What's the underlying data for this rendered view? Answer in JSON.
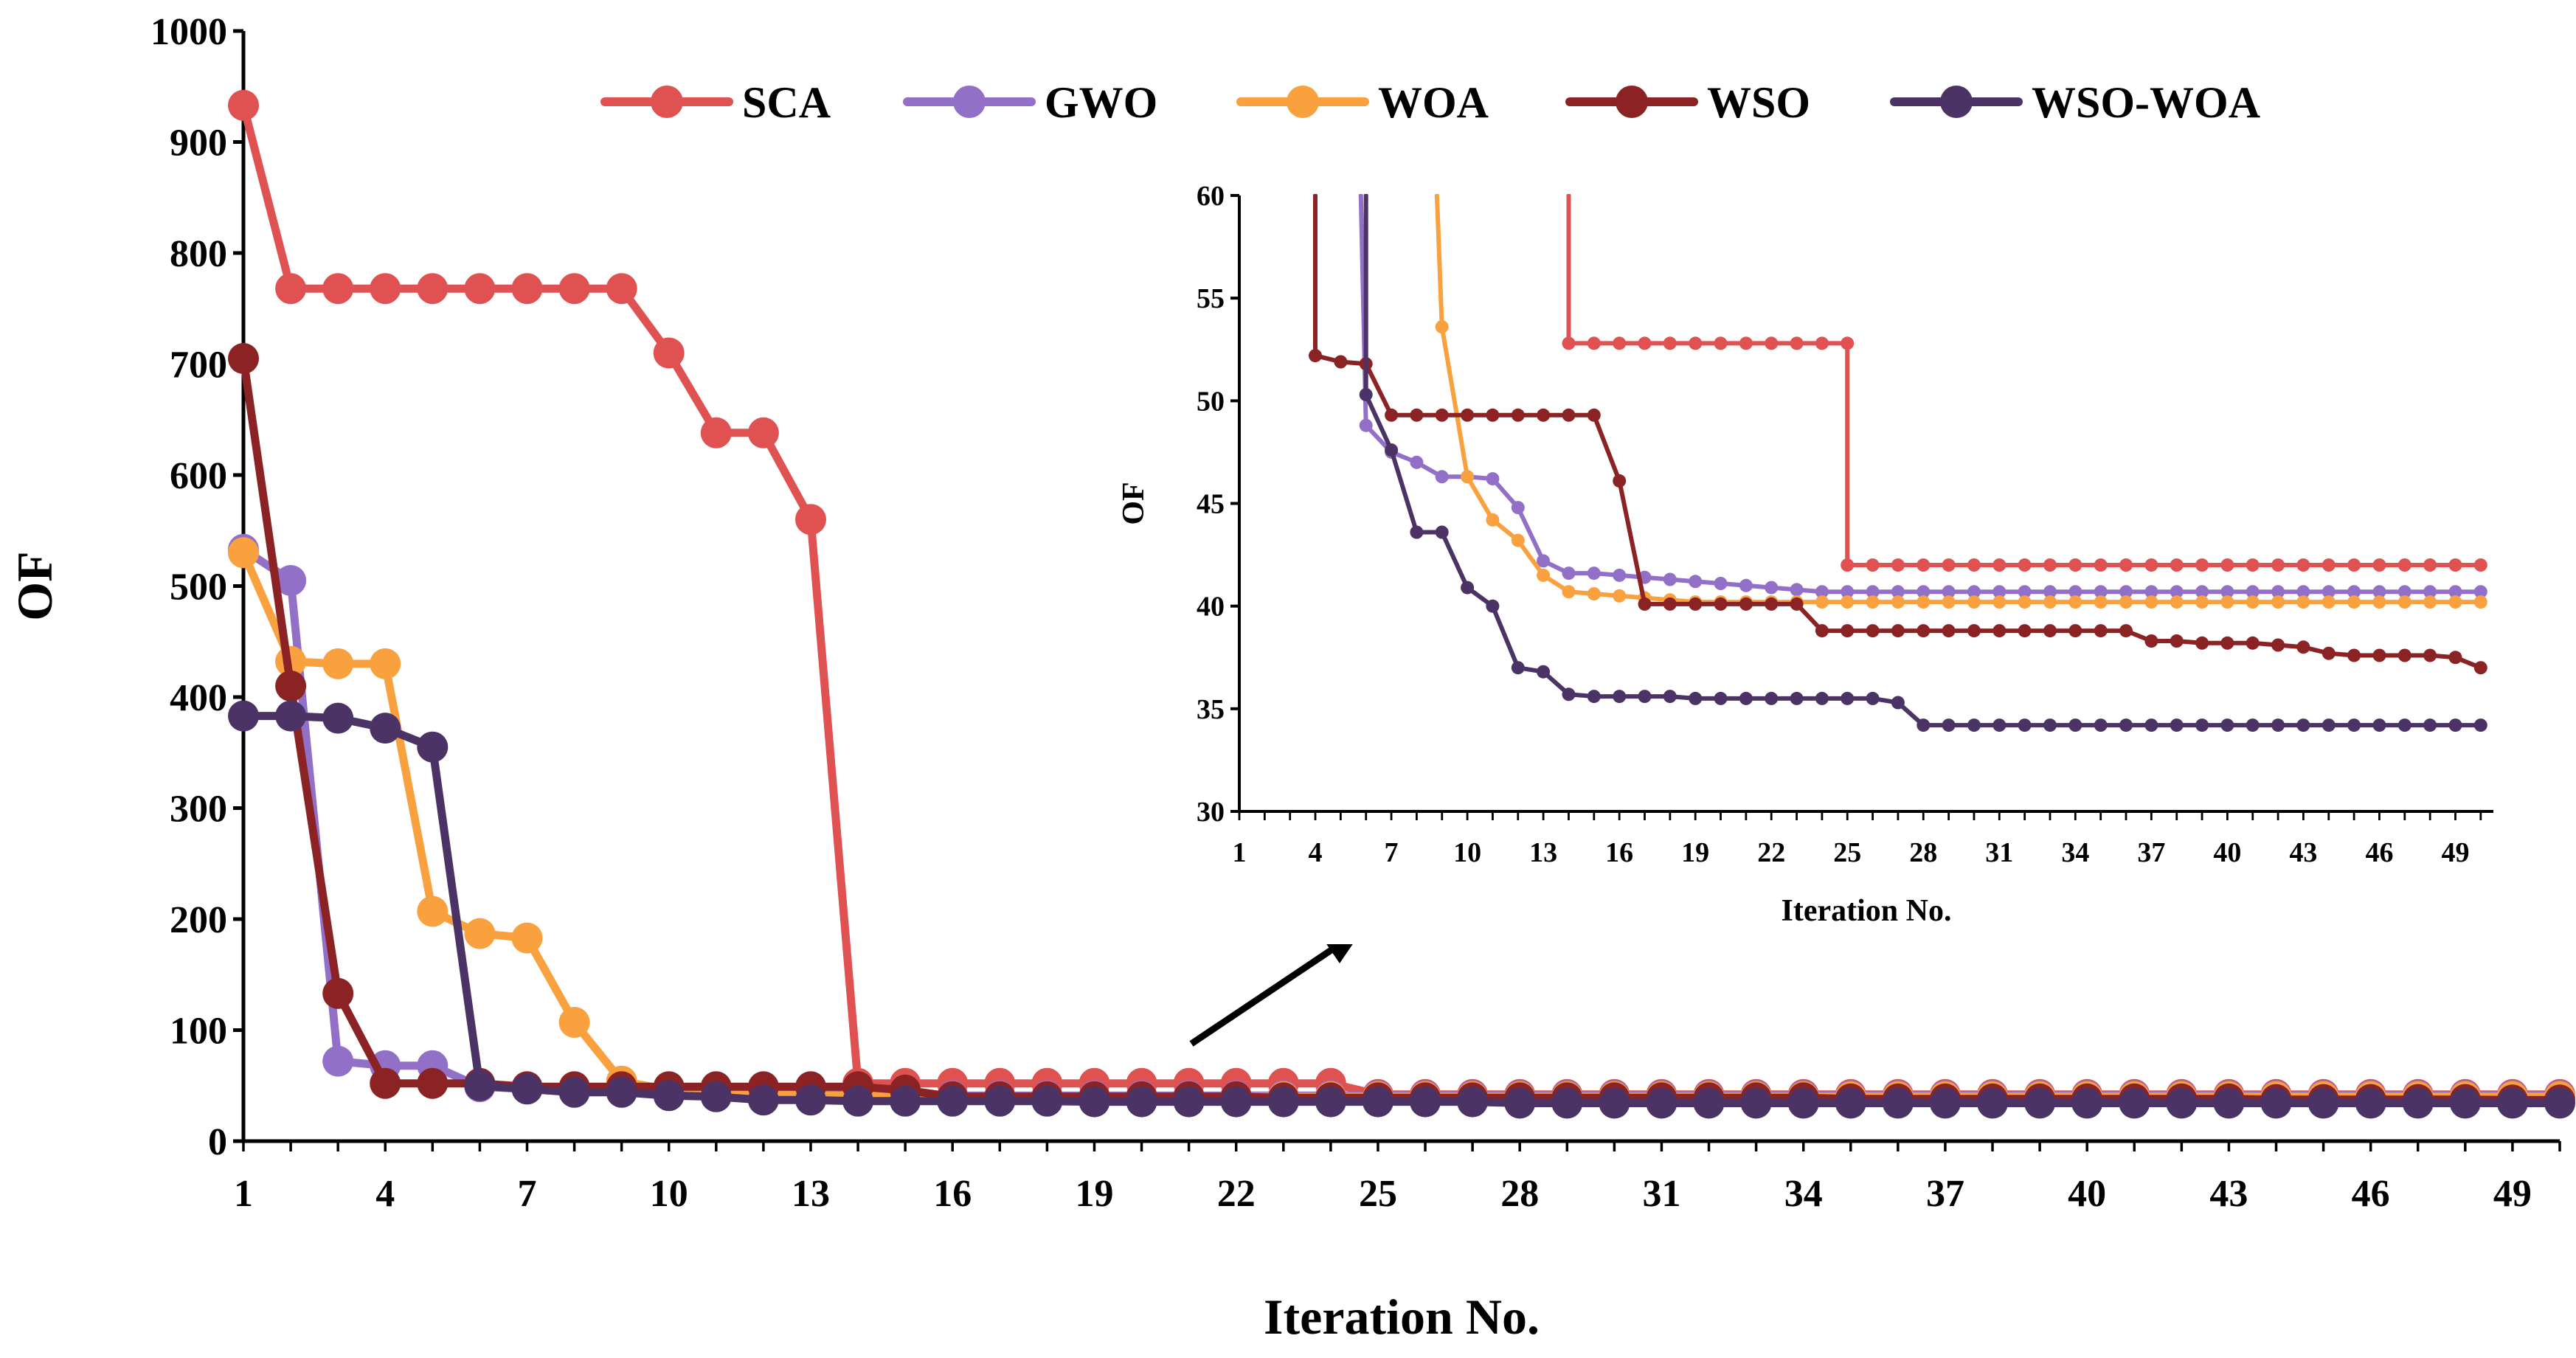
{
  "chart_data": [
    {
      "type": "line",
      "panel": "main",
      "title": "",
      "xlabel": "Iteration No.",
      "ylabel": "OF",
      "xlim": [
        1,
        50
      ],
      "ylim": [
        0,
        1000
      ],
      "xticks": [
        1,
        4,
        7,
        10,
        13,
        16,
        19,
        22,
        25,
        28,
        31,
        34,
        37,
        40,
        43,
        46,
        49
      ],
      "yticks": [
        0,
        100,
        200,
        300,
        400,
        500,
        600,
        700,
        800,
        900,
        1000
      ],
      "legend": "top",
      "series": [
        {
          "name": "SCA",
          "color": "#E05252",
          "x": [
            1,
            2,
            3,
            4,
            5,
            6,
            7,
            8,
            9,
            10,
            11,
            12,
            13,
            14,
            15,
            16,
            17,
            18,
            19,
            20,
            21,
            22,
            23,
            24,
            25,
            26,
            27,
            28,
            29,
            30,
            31,
            32,
            33,
            34,
            35,
            36,
            37,
            38,
            39,
            40,
            41,
            42,
            43,
            44,
            45,
            46,
            47,
            48,
            49,
            50
          ],
          "y": [
            933,
            768,
            768,
            768,
            768,
            768,
            768,
            768,
            768,
            710,
            638,
            638,
            560,
            52,
            52,
            52,
            52,
            52,
            52,
            52,
            52,
            52,
            52,
            52,
            42,
            42,
            42,
            42,
            42,
            42,
            42,
            42,
            42,
            42,
            42,
            42,
            42,
            42,
            42,
            42,
            42,
            42,
            42,
            42,
            42,
            42,
            42,
            42,
            42,
            42
          ]
        },
        {
          "name": "GWO",
          "color": "#9370C8",
          "x": [
            1,
            2,
            3,
            4,
            5,
            6,
            7,
            8,
            9,
            10,
            11,
            12,
            13,
            14,
            15,
            16,
            17,
            18,
            19,
            20,
            21,
            22,
            23,
            24,
            25,
            26,
            27,
            28,
            29,
            30,
            31,
            32,
            33,
            34,
            35,
            36,
            37,
            38,
            39,
            40,
            41,
            42,
            43,
            44,
            45,
            46,
            47,
            48,
            49,
            50
          ],
          "y": [
            533,
            505,
            72,
            68,
            68,
            49,
            47,
            46,
            46,
            46,
            45,
            43,
            42,
            42,
            42,
            41,
            41,
            41,
            41,
            41,
            41,
            41,
            41,
            41,
            41,
            41,
            41,
            41,
            41,
            41,
            41,
            41,
            41,
            41,
            41,
            41,
            41,
            41,
            41,
            41,
            41,
            41,
            41,
            41,
            41,
            41,
            41,
            41,
            41,
            41
          ]
        },
        {
          "name": "WOA",
          "color": "#F9A03F",
          "x": [
            1,
            2,
            3,
            4,
            5,
            6,
            7,
            8,
            9,
            10,
            11,
            12,
            13,
            14,
            15,
            16,
            17,
            18,
            19,
            20,
            21,
            22,
            23,
            24,
            25,
            26,
            27,
            28,
            29,
            30,
            31,
            32,
            33,
            34,
            35,
            36,
            37,
            38,
            39,
            40,
            41,
            42,
            43,
            44,
            45,
            46,
            47,
            48,
            49,
            50
          ],
          "y": [
            530,
            432,
            430,
            430,
            207,
            187,
            183,
            107,
            54,
            46,
            44,
            43,
            41,
            41,
            41,
            40,
            40,
            40,
            40,
            40,
            40,
            40,
            40,
            40,
            40,
            40,
            40,
            40,
            40,
            40,
            40,
            40,
            40,
            40,
            40,
            40,
            40,
            40,
            40,
            40,
            40,
            40,
            40,
            40,
            40,
            40,
            40,
            40,
            40,
            40
          ]
        },
        {
          "name": "WSO",
          "color": "#8B2325",
          "x": [
            1,
            2,
            3,
            4,
            5,
            6,
            7,
            8,
            9,
            10,
            11,
            12,
            13,
            14,
            15,
            16,
            17,
            18,
            19,
            20,
            21,
            22,
            23,
            24,
            25,
            26,
            27,
            28,
            29,
            30,
            31,
            32,
            33,
            34,
            35,
            36,
            37,
            38,
            39,
            40,
            41,
            42,
            43,
            44,
            45,
            46,
            47,
            48,
            49,
            50
          ],
          "y": [
            705,
            410,
            133,
            52,
            52,
            52,
            49,
            49,
            49,
            49,
            49,
            49,
            49,
            49,
            46,
            40,
            40,
            40,
            40,
            40,
            40,
            40,
            39,
            39,
            39,
            39,
            39,
            39,
            39,
            39,
            39,
            39,
            39,
            39,
            38,
            38,
            38,
            38,
            38,
            38,
            38,
            38,
            38,
            37.5,
            37.5,
            37.5,
            37.5,
            37.5,
            37,
            37
          ]
        },
        {
          "name": "WSO-WOA",
          "color": "#4B3465",
          "x": [
            1,
            2,
            3,
            4,
            5,
            6,
            7,
            8,
            9,
            10,
            11,
            12,
            13,
            14,
            15,
            16,
            17,
            18,
            19,
            20,
            21,
            22,
            23,
            24,
            25,
            26,
            27,
            28,
            29,
            30,
            31,
            32,
            33,
            34,
            35,
            36,
            37,
            38,
            39,
            40,
            41,
            42,
            43,
            44,
            45,
            46,
            47,
            48,
            49,
            50
          ],
          "y": [
            383,
            383,
            381,
            372,
            355,
            50,
            47,
            44,
            44,
            41,
            40,
            37,
            37,
            36,
            36,
            36,
            36,
            36,
            35.5,
            35.5,
            35.5,
            35.5,
            35.5,
            35.5,
            35.5,
            35.5,
            35.5,
            34.2,
            34.2,
            34.2,
            34.2,
            34.2,
            34.2,
            34.2,
            34.2,
            34.2,
            34.2,
            34.2,
            34.2,
            34.2,
            34.2,
            34.2,
            34.2,
            34.2,
            34.2,
            34.2,
            34.2,
            34.2,
            34.2,
            34.2
          ]
        }
      ]
    },
    {
      "type": "line",
      "panel": "inset",
      "title": "",
      "xlabel": "Iteration No.",
      "ylabel": "OF",
      "xlim": [
        1,
        50.5
      ],
      "ylim": [
        30,
        60
      ],
      "xticks": [
        1,
        4,
        7,
        10,
        13,
        16,
        19,
        22,
        25,
        28,
        31,
        34,
        37,
        40,
        43,
        46,
        49
      ],
      "yticks": [
        30,
        35,
        40,
        45,
        50,
        55,
        60
      ],
      "series": [
        {
          "name": "SCA",
          "color": "#E05252",
          "x": [
            14,
            14,
            15,
            16,
            17,
            18,
            19,
            20,
            21,
            22,
            23,
            24,
            25,
            25,
            26,
            27,
            28,
            29,
            30,
            31,
            32,
            33,
            34,
            35,
            36,
            37,
            38,
            39,
            40,
            41,
            42,
            43,
            44,
            45,
            46,
            47,
            48,
            49,
            50
          ],
          "y": [
            60,
            52.8,
            52.8,
            52.8,
            52.8,
            52.8,
            52.8,
            52.8,
            52.8,
            52.8,
            52.8,
            52.8,
            52.8,
            42,
            42,
            42,
            42,
            42,
            42,
            42,
            42,
            42,
            42,
            42,
            42,
            42,
            42,
            42,
            42,
            42,
            42,
            42,
            42,
            42,
            42,
            42,
            42,
            42,
            42
          ]
        },
        {
          "name": "GWO",
          "color": "#9370C8",
          "x": [
            5.8,
            6,
            7,
            8,
            9,
            10,
            11,
            12,
            13,
            14,
            15,
            16,
            17,
            18,
            19,
            20,
            21,
            22,
            23,
            24,
            25,
            26,
            27,
            28,
            29,
            30,
            31,
            32,
            33,
            34,
            35,
            36,
            37,
            38,
            39,
            40,
            41,
            42,
            43,
            44,
            45,
            46,
            47,
            48,
            49,
            50
          ],
          "y": [
            60,
            48.8,
            47.5,
            47,
            46.3,
            46.3,
            46.2,
            44.8,
            42.2,
            41.6,
            41.6,
            41.5,
            41.4,
            41.3,
            41.2,
            41.1,
            41.0,
            40.9,
            40.8,
            40.7,
            40.7,
            40.7,
            40.7,
            40.7,
            40.7,
            40.7,
            40.7,
            40.7,
            40.7,
            40.7,
            40.7,
            40.7,
            40.7,
            40.7,
            40.7,
            40.7,
            40.7,
            40.7,
            40.7,
            40.7,
            40.7,
            40.7,
            40.7,
            40.7,
            40.7,
            40.7
          ]
        },
        {
          "name": "WOA",
          "color": "#F9A03F",
          "x": [
            8.8,
            9,
            10,
            11,
            12,
            13,
            14,
            15,
            16,
            17,
            18,
            19,
            20,
            21,
            22,
            23,
            24,
            25,
            26,
            27,
            28,
            29,
            30,
            31,
            32,
            33,
            34,
            35,
            36,
            37,
            38,
            39,
            40,
            41,
            42,
            43,
            44,
            45,
            46,
            47,
            48,
            49,
            50
          ],
          "y": [
            60,
            53.6,
            46.3,
            44.2,
            43.2,
            41.5,
            40.7,
            40.6,
            40.5,
            40.4,
            40.3,
            40.2,
            40.2,
            40.2,
            40.2,
            40.2,
            40.2,
            40.2,
            40.2,
            40.2,
            40.2,
            40.2,
            40.2,
            40.2,
            40.2,
            40.2,
            40.2,
            40.2,
            40.2,
            40.2,
            40.2,
            40.2,
            40.2,
            40.2,
            40.2,
            40.2,
            40.2,
            40.2,
            40.2,
            40.2,
            40.2,
            40.2,
            40.2
          ]
        },
        {
          "name": "WSO",
          "color": "#8B2325",
          "x": [
            4,
            4,
            5,
            6,
            7,
            8,
            9,
            10,
            11,
            12,
            13,
            14,
            15,
            16,
            17,
            18,
            19,
            20,
            21,
            22,
            23,
            24,
            25,
            26,
            27,
            28,
            29,
            30,
            31,
            32,
            33,
            34,
            35,
            36,
            37,
            38,
            39,
            40,
            41,
            42,
            43,
            44,
            45,
            46,
            47,
            48,
            49,
            50
          ],
          "y": [
            60,
            52.2,
            51.9,
            51.8,
            49.3,
            49.3,
            49.3,
            49.3,
            49.3,
            49.3,
            49.3,
            49.3,
            49.3,
            46.1,
            40.1,
            40.1,
            40.1,
            40.1,
            40.1,
            40.1,
            40.1,
            38.8,
            38.8,
            38.8,
            38.8,
            38.8,
            38.8,
            38.8,
            38.8,
            38.8,
            38.8,
            38.8,
            38.8,
            38.8,
            38.3,
            38.3,
            38.2,
            38.2,
            38.2,
            38.1,
            38.0,
            37.7,
            37.6,
            37.6,
            37.6,
            37.6,
            37.5,
            37.0
          ]
        },
        {
          "name": "WSO-WOA",
          "color": "#4B3465",
          "x": [
            6,
            6,
            7,
            8,
            9,
            10,
            11,
            12,
            13,
            14,
            15,
            16,
            17,
            18,
            19,
            20,
            21,
            22,
            23,
            24,
            25,
            26,
            27,
            28,
            29,
            30,
            31,
            32,
            33,
            34,
            35,
            36,
            37,
            38,
            39,
            40,
            41,
            42,
            43,
            44,
            45,
            46,
            47,
            48,
            49,
            50
          ],
          "y": [
            60,
            50.3,
            47.6,
            43.6,
            43.6,
            40.9,
            40.0,
            37.0,
            36.8,
            35.7,
            35.6,
            35.6,
            35.6,
            35.6,
            35.5,
            35.5,
            35.5,
            35.5,
            35.5,
            35.5,
            35.5,
            35.5,
            35.3,
            34.2,
            34.2,
            34.2,
            34.2,
            34.2,
            34.2,
            34.2,
            34.2,
            34.2,
            34.2,
            34.2,
            34.2,
            34.2,
            34.2,
            34.2,
            34.2,
            34.2,
            34.2,
            34.2,
            34.2,
            34.2,
            34.2,
            34.2
          ]
        }
      ]
    }
  ]
}
